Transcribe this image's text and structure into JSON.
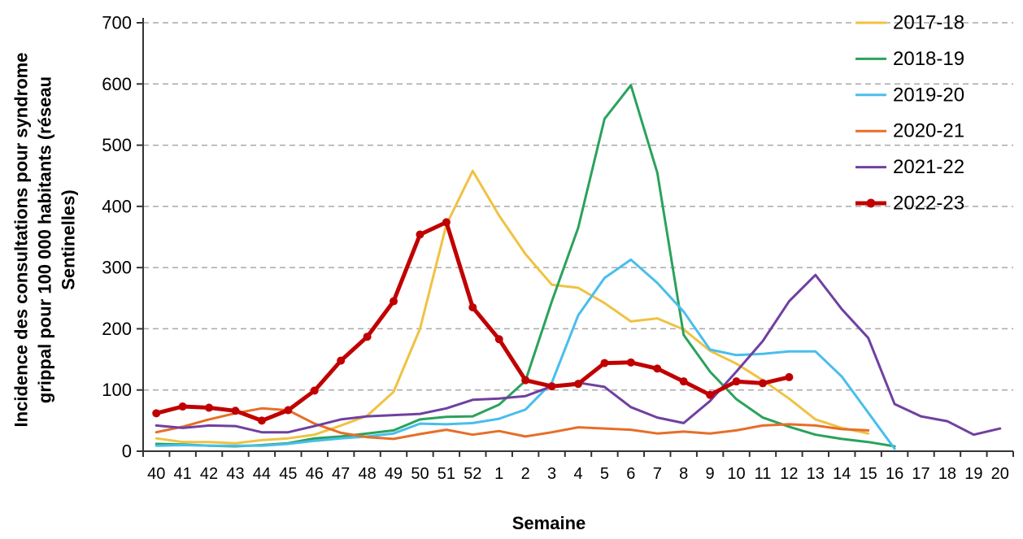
{
  "chart_data": {
    "type": "line",
    "title": "",
    "xlabel": "Semaine",
    "ylabel": "Incidence des consultations pour syndrome grippal pour 100 000 habitants (réseau Sentinelles)",
    "ylabel_lines": [
      "Incidence des consultations pour syndrome",
      "grippal pour 100 000 habitants (réseau",
      "Sentinelles)"
    ],
    "ylim": [
      0,
      700
    ],
    "ytick_step": 100,
    "grid": "horizontal-dashed",
    "legend_position": "top-right",
    "colors": {
      "grid": "#A9A9A9",
      "axis": "#333333",
      "text": "#000000"
    },
    "categories": [
      "40",
      "41",
      "42",
      "43",
      "44",
      "45",
      "46",
      "47",
      "48",
      "49",
      "50",
      "51",
      "52",
      "1",
      "2",
      "3",
      "4",
      "5",
      "6",
      "7",
      "8",
      "9",
      "10",
      "11",
      "12",
      "13",
      "14",
      "15",
      "16",
      "17",
      "18",
      "19",
      "20"
    ],
    "series": [
      {
        "name": "2017-18",
        "color": "#F0C242",
        "width": 3,
        "marker": false,
        "values": [
          21,
          15,
          15,
          13,
          18,
          21,
          27,
          42,
          58,
          97,
          200,
          370,
          458,
          385,
          322,
          272,
          267,
          242,
          212,
          217,
          199,
          164,
          143,
          116,
          86,
          52,
          38,
          29,
          null,
          null,
          null,
          null,
          null
        ]
      },
      {
        "name": "2018-19",
        "color": "#2AA25C",
        "width": 3,
        "marker": false,
        "values": [
          12,
          11,
          9,
          8,
          10,
          13,
          21,
          24,
          29,
          34,
          52,
          56,
          57,
          76,
          115,
          245,
          365,
          543,
          598,
          455,
          190,
          130,
          85,
          55,
          40,
          27,
          20,
          15,
          8,
          null,
          null,
          null,
          null
        ]
      },
      {
        "name": "2019-20",
        "color": "#49BEEC",
        "width": 3,
        "marker": false,
        "values": [
          9,
          10,
          9,
          9,
          9,
          12,
          17,
          21,
          24,
          29,
          45,
          44,
          46,
          53,
          68,
          112,
          222,
          283,
          313,
          275,
          228,
          166,
          157,
          159,
          163,
          163,
          122,
          63,
          4,
          null,
          null,
          null,
          null
        ]
      },
      {
        "name": "2020-21",
        "color": "#E66E28",
        "width": 3,
        "marker": false,
        "values": [
          31,
          40,
          52,
          62,
          70,
          67,
          45,
          30,
          23,
          20,
          28,
          35,
          27,
          33,
          24,
          31,
          39,
          37,
          35,
          29,
          32,
          29,
          34,
          42,
          44,
          42,
          36,
          34,
          null,
          null,
          null,
          null,
          null
        ]
      },
      {
        "name": "2021-22",
        "color": "#7040A0",
        "width": 3,
        "marker": false,
        "values": [
          42,
          38,
          42,
          41,
          31,
          31,
          41,
          52,
          57,
          59,
          61,
          70,
          84,
          86,
          90,
          106,
          112,
          105,
          72,
          55,
          46,
          82,
          130,
          180,
          245,
          288,
          232,
          185,
          77,
          57,
          49,
          27,
          37
        ]
      },
      {
        "name": "2022-23",
        "color": "#C00000",
        "width": 5,
        "marker": true,
        "values": [
          62,
          73,
          71,
          66,
          50,
          67,
          99,
          148,
          187,
          245,
          354,
          374,
          235,
          183,
          116,
          106,
          110,
          144,
          145,
          135,
          114,
          92,
          114,
          111,
          121,
          null,
          null,
          null,
          null,
          null,
          null,
          null,
          null
        ]
      }
    ]
  }
}
